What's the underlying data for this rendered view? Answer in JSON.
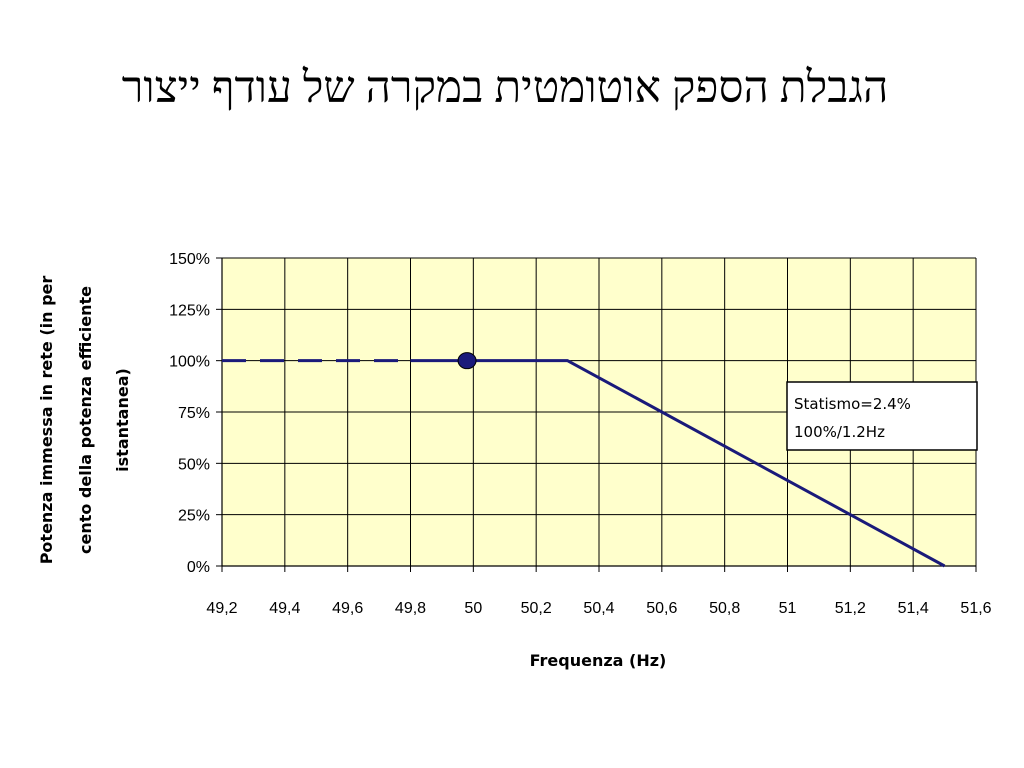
{
  "slide": {
    "title": "הגבלת הספק אוטומטית במקרה של עודף ייצור"
  },
  "chart_data": {
    "type": "line",
    "xlabel": "Frequenza (Hz)",
    "ylabel_lines": [
      "Potenza immessa in rete (in per",
      "cento della potenza efficiente",
      "istantanea)"
    ],
    "x_ticks": [
      {
        "value": 49.2,
        "label": "49,2"
      },
      {
        "value": 49.4,
        "label": "49,4"
      },
      {
        "value": 49.6,
        "label": "49,6"
      },
      {
        "value": 49.8,
        "label": "49,8"
      },
      {
        "value": 50.0,
        "label": "50"
      },
      {
        "value": 50.2,
        "label": "50,2"
      },
      {
        "value": 50.4,
        "label": "50,4"
      },
      {
        "value": 50.6,
        "label": "50,6"
      },
      {
        "value": 50.8,
        "label": "50,8"
      },
      {
        "value": 51.0,
        "label": "51"
      },
      {
        "value": 51.2,
        "label": "51,2"
      },
      {
        "value": 51.4,
        "label": "51,4"
      },
      {
        "value": 51.6,
        "label": "51,6"
      }
    ],
    "y_ticks": [
      {
        "value": 0,
        "label": "0%"
      },
      {
        "value": 25,
        "label": "25%"
      },
      {
        "value": 50,
        "label": "50%"
      },
      {
        "value": 75,
        "label": "75%"
      },
      {
        "value": 100,
        "label": "100%"
      },
      {
        "value": 125,
        "label": "125%"
      },
      {
        "value": 150,
        "label": "150%"
      }
    ],
    "xlim": [
      49.2,
      51.6
    ],
    "ylim": [
      0,
      150
    ],
    "grid": true,
    "plot_background": "#ffffcc",
    "line_color": "#1a1a7a",
    "series": [
      {
        "style": "dashed",
        "points": [
          [
            49.2,
            100
          ],
          [
            49.8,
            100
          ]
        ]
      },
      {
        "style": "solid",
        "points": [
          [
            49.8,
            100
          ],
          [
            50.3,
            100
          ],
          [
            51.5,
            0
          ]
        ]
      }
    ],
    "marker": {
      "x": 49.98,
      "y": 100,
      "color": "#1a1a7a"
    },
    "annotation": {
      "lines": [
        "Statismo=2.4%",
        "100%/1.2Hz"
      ]
    }
  }
}
